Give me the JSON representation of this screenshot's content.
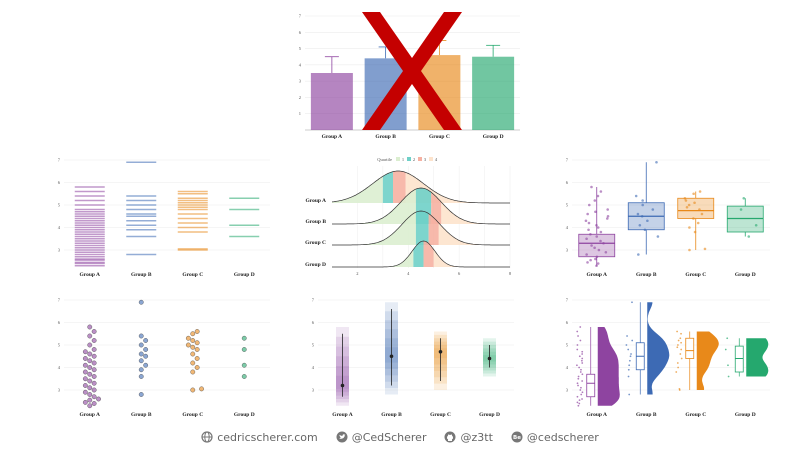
{
  "colors": {
    "A": "#8e44a0",
    "B": "#3d6ab4",
    "C": "#e8891a",
    "D": "#25a86e",
    "cross": "#c40000",
    "grid": "#ececec",
    "axis": "#999999"
  },
  "chart_data": [
    {
      "type": "bar",
      "title": "",
      "categories": [
        "Group A",
        "Group B",
        "Group C",
        "Group D"
      ],
      "values": [
        3.5,
        4.4,
        4.6,
        4.5
      ],
      "errors": [
        1.0,
        0.7,
        0.9,
        0.7
      ],
      "ylim": [
        0,
        7
      ],
      "yticks": [
        1,
        2,
        3,
        4,
        5,
        6,
        7
      ],
      "crossed_out": true
    },
    {
      "type": "strip",
      "categories": [
        "Group A",
        "Group B",
        "Group C",
        "Group D"
      ],
      "ylim": [
        2.2,
        7
      ],
      "yticks": [
        3,
        4,
        5,
        6,
        7
      ],
      "points": {
        "A": [
          2.3,
          2.4,
          2.45,
          2.55,
          2.6,
          2.7,
          2.8,
          2.9,
          3.0,
          3.1,
          3.2,
          3.3,
          3.4,
          3.5,
          3.6,
          3.7,
          3.8,
          3.9,
          4.0,
          4.1,
          4.2,
          4.3,
          4.4,
          4.5,
          4.6,
          4.7,
          4.8,
          5.0,
          5.2,
          5.4,
          5.6,
          5.8
        ],
        "B": [
          2.8,
          3.6,
          3.9,
          4.1,
          4.3,
          4.5,
          4.6,
          4.8,
          5.0,
          5.2,
          5.4,
          6.9
        ],
        "C": [
          3.0,
          3.05,
          3.8,
          4.0,
          4.2,
          4.4,
          4.6,
          4.8,
          4.9,
          5.0,
          5.1,
          5.2,
          5.3,
          5.5,
          5.6
        ],
        "D": [
          3.6,
          4.1,
          4.8,
          5.3
        ]
      }
    },
    {
      "type": "ridgeline",
      "title": "Quartile",
      "legend": [
        "1",
        "2",
        "3",
        "4"
      ],
      "categories": [
        "Group A",
        "Group B",
        "Group C",
        "Group D"
      ],
      "xlim": [
        1,
        8
      ],
      "xticks": [
        2,
        4,
        6,
        8
      ]
    },
    {
      "type": "boxplot",
      "categories": [
        "Group A",
        "Group B",
        "Group C",
        "Group D"
      ],
      "ylim": [
        2.2,
        7
      ],
      "yticks": [
        3,
        4,
        5,
        6,
        7
      ],
      "boxes": [
        {
          "q1": 2.7,
          "median": 3.3,
          "q3": 3.7,
          "min": 2.3,
          "max": 5.8
        },
        {
          "q1": 3.9,
          "median": 4.5,
          "q3": 5.1,
          "min": 2.8,
          "max": 6.9
        },
        {
          "q1": 4.4,
          "median": 4.75,
          "q3": 5.3,
          "min": 3.0,
          "max": 5.6
        },
        {
          "q1": 3.8,
          "median": 4.4,
          "q3": 4.95,
          "min": 3.6,
          "max": 5.3
        }
      ]
    },
    {
      "type": "beeswarm",
      "categories": [
        "Group A",
        "Group B",
        "Group C",
        "Group D"
      ],
      "ylim": [
        2.2,
        7
      ],
      "yticks": [
        3,
        4,
        5,
        6,
        7
      ]
    },
    {
      "type": "gradient-interval",
      "categories": [
        "Group A",
        "Group B",
        "Group C",
        "Group D"
      ],
      "ylim": [
        2.2,
        7
      ],
      "yticks": [
        3,
        4,
        5,
        6,
        7
      ]
    },
    {
      "type": "raincloud",
      "categories": [
        "Group A",
        "Group B",
        "Group C",
        "Group D"
      ],
      "ylim": [
        2.2,
        7
      ],
      "yticks": [
        3,
        4,
        5,
        6,
        7
      ]
    }
  ],
  "footer": {
    "website": "cedricscherer.com",
    "twitter": "@CedScherer",
    "github": "@z3tt",
    "behance": "@cedscherer"
  }
}
